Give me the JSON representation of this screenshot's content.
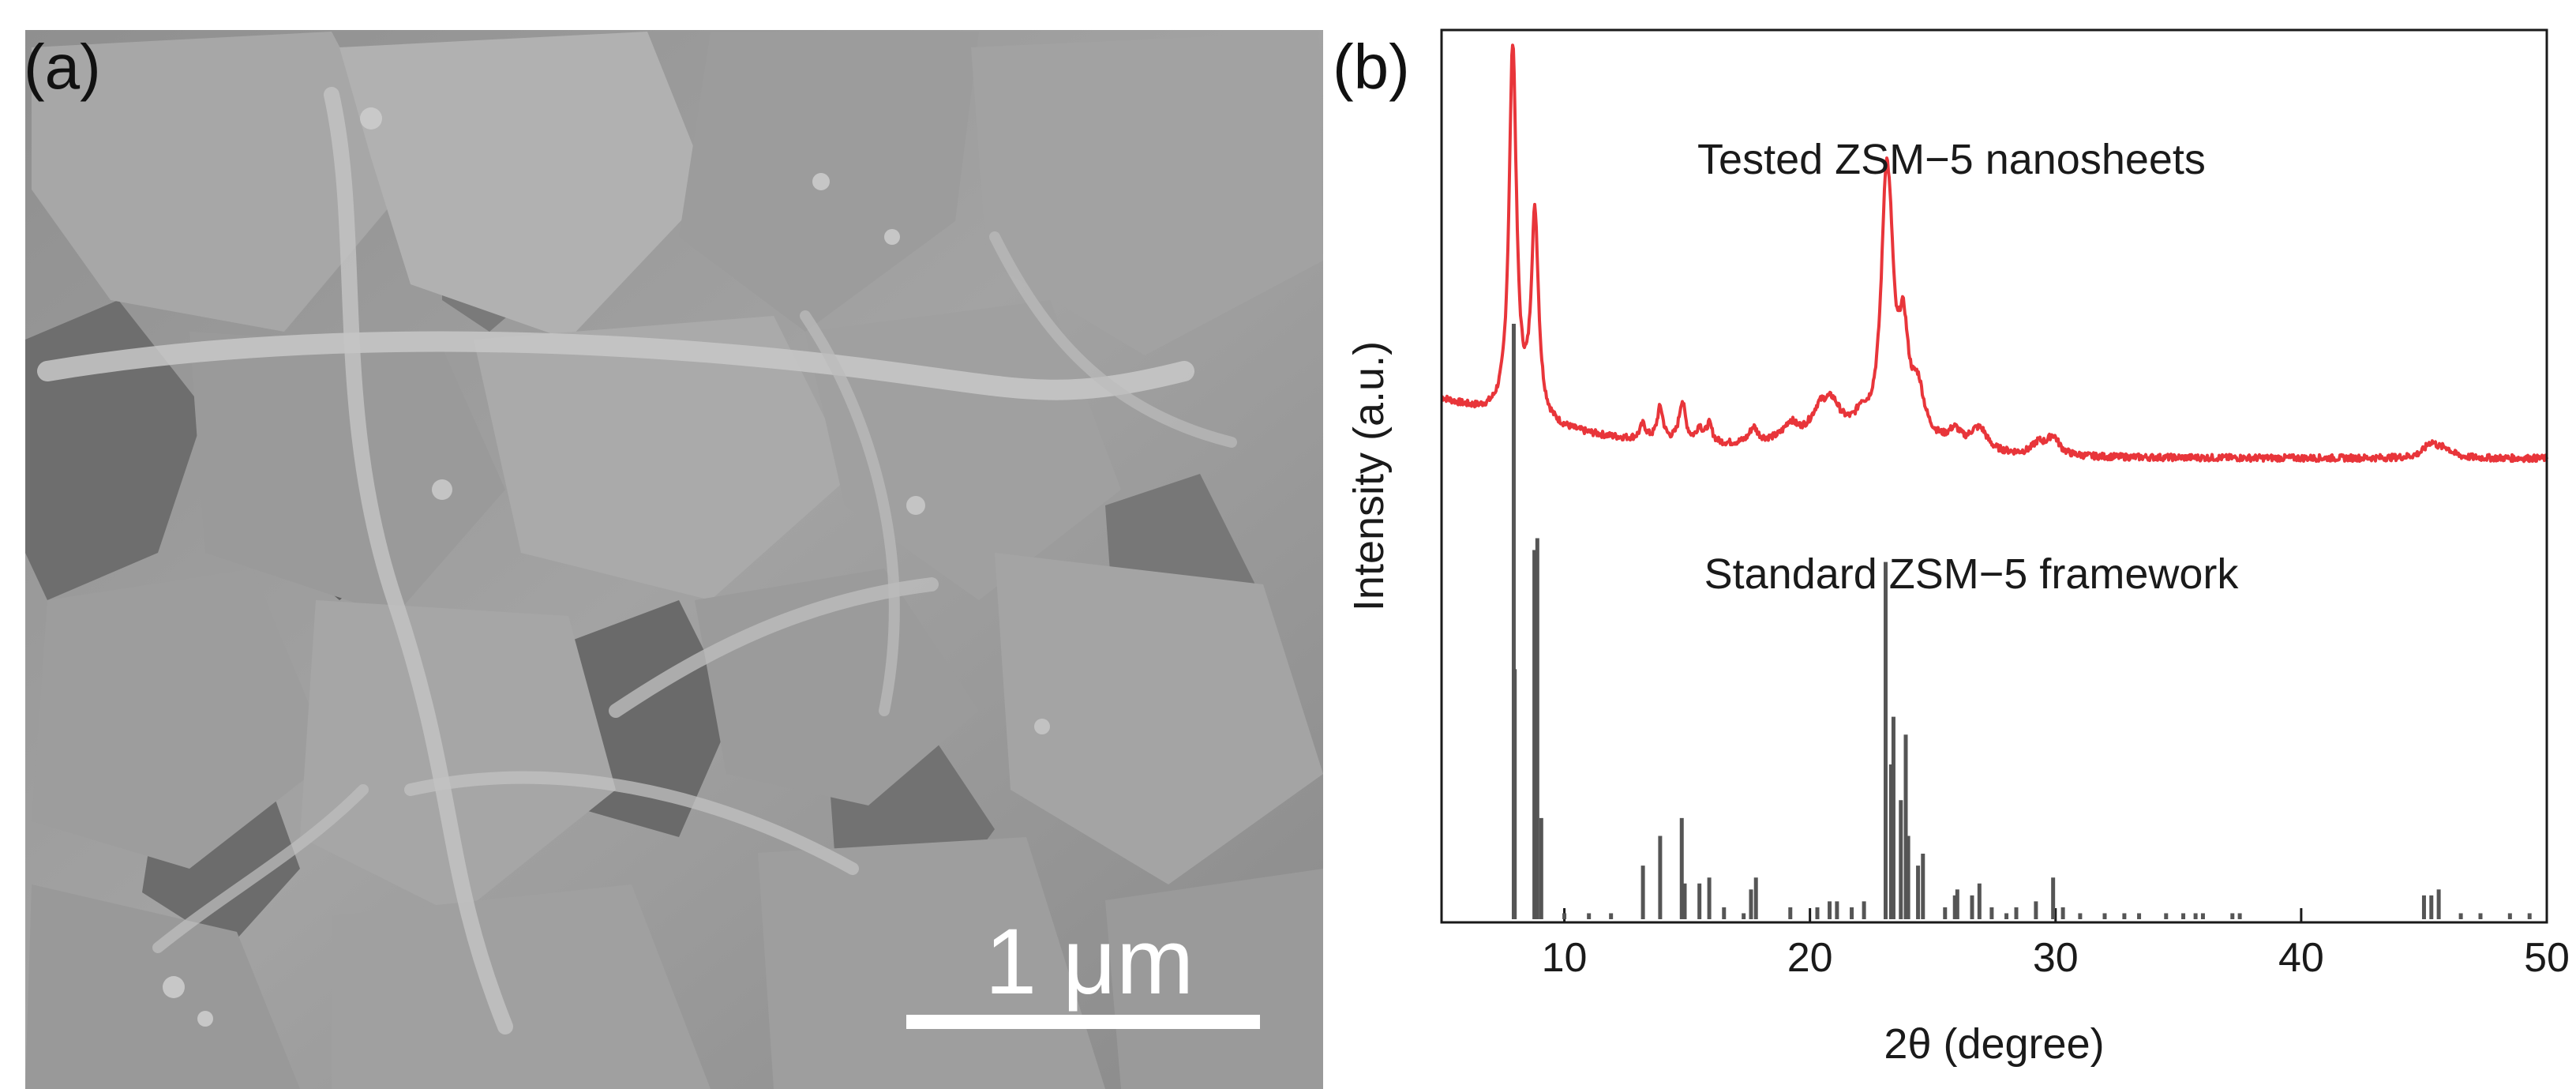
{
  "panels": {
    "a": {
      "label": "(a)",
      "image_subject": "sem-micrograph-nanosheets",
      "scale_bar": {
        "label": "1 μm",
        "color": "#ffffff"
      }
    },
    "b": {
      "label": "(b)"
    }
  },
  "chart_data": {
    "type": "line",
    "xlabel": "2θ (degree)",
    "ylabel": "Intensity (a.u.)",
    "xlim": [
      5,
      50
    ],
    "xticks": [
      10,
      20,
      30,
      40,
      50
    ],
    "xtick_labels": [
      "10",
      "20",
      "30",
      "40",
      "50"
    ],
    "yticks": [],
    "series": [
      {
        "name": "Tested ZSM−5 nanosheets",
        "kind": "xrd-pattern",
        "color": "#e8353a",
        "baseline": 22,
        "peaks": [
          [
            7.9,
            100,
            0.18
          ],
          [
            8.8,
            55,
            0.18
          ],
          [
            13.2,
            4,
            0.15
          ],
          [
            13.9,
            9,
            0.15
          ],
          [
            14.8,
            11,
            0.16
          ],
          [
            15.5,
            4,
            0.15
          ],
          [
            15.9,
            5,
            0.15
          ],
          [
            17.7,
            4,
            0.2
          ],
          [
            19.2,
            4,
            0.3
          ],
          [
            20.4,
            6,
            0.4
          ],
          [
            20.9,
            7,
            0.4
          ],
          [
            22.1,
            4,
            0.25
          ],
          [
            23.1,
            62,
            0.24
          ],
          [
            23.3,
            18,
            0.18
          ],
          [
            23.8,
            26,
            0.25
          ],
          [
            24.4,
            12,
            0.3
          ],
          [
            25.9,
            4,
            0.3
          ],
          [
            26.7,
            3,
            0.3
          ],
          [
            27.0,
            4,
            0.3
          ],
          [
            29.3,
            3,
            0.3
          ],
          [
            29.9,
            5,
            0.3
          ],
          [
            45.3,
            4,
            0.35
          ],
          [
            45.9,
            2,
            0.3
          ]
        ]
      },
      {
        "name": "Standard ZSM−5 framework",
        "kind": "stick",
        "color": "#555555",
        "sticks": [
          [
            7.94,
            100
          ],
          [
            7.98,
            42
          ],
          [
            8.78,
            62
          ],
          [
            8.9,
            64
          ],
          [
            9.06,
            17
          ],
          [
            10.0,
            1
          ],
          [
            11.0,
            1
          ],
          [
            11.9,
            1
          ],
          [
            13.2,
            9
          ],
          [
            13.9,
            14
          ],
          [
            14.78,
            17
          ],
          [
            14.9,
            6
          ],
          [
            15.5,
            6
          ],
          [
            15.9,
            7
          ],
          [
            16.5,
            2
          ],
          [
            17.3,
            1
          ],
          [
            17.6,
            5
          ],
          [
            17.8,
            7
          ],
          [
            19.2,
            2
          ],
          [
            20.3,
            2
          ],
          [
            20.8,
            3
          ],
          [
            21.1,
            3
          ],
          [
            21.7,
            2
          ],
          [
            22.2,
            3
          ],
          [
            23.08,
            60
          ],
          [
            23.3,
            26
          ],
          [
            23.4,
            34
          ],
          [
            23.7,
            20
          ],
          [
            23.9,
            31
          ],
          [
            24.0,
            14
          ],
          [
            24.4,
            9
          ],
          [
            24.6,
            11
          ],
          [
            25.5,
            2
          ],
          [
            25.9,
            4
          ],
          [
            26.0,
            5
          ],
          [
            26.6,
            4
          ],
          [
            26.9,
            6
          ],
          [
            27.4,
            2
          ],
          [
            28.0,
            1
          ],
          [
            28.4,
            2
          ],
          [
            29.2,
            3
          ],
          [
            29.9,
            7
          ],
          [
            30.3,
            2
          ],
          [
            31.0,
            1
          ],
          [
            32.0,
            1
          ],
          [
            32.8,
            1
          ],
          [
            33.4,
            1
          ],
          [
            34.5,
            1
          ],
          [
            35.2,
            1
          ],
          [
            35.7,
            1
          ],
          [
            36.0,
            1
          ],
          [
            37.2,
            1
          ],
          [
            37.5,
            1
          ],
          [
            45.0,
            4
          ],
          [
            45.3,
            4
          ],
          [
            45.6,
            5
          ],
          [
            46.5,
            1
          ],
          [
            47.3,
            1
          ],
          [
            48.5,
            1
          ],
          [
            49.3,
            1
          ]
        ]
      }
    ],
    "annotations": [
      "Tested ZSM−5 nanosheets",
      "Standard ZSM−5 framework"
    ]
  }
}
